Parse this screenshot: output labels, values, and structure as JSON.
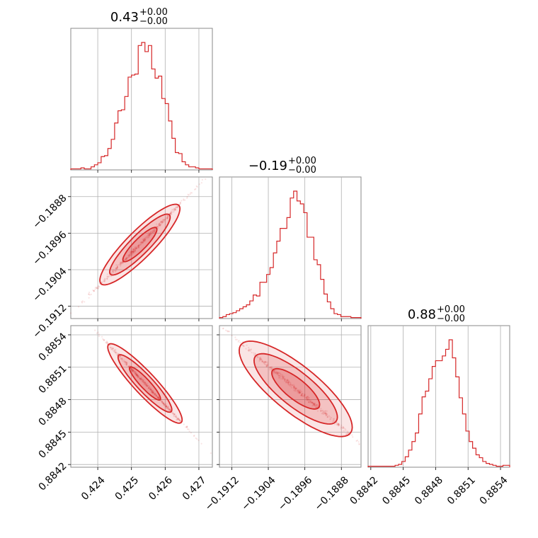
{
  "chart_data": {
    "type": "corner",
    "color": "#d62728",
    "grid": true,
    "titles": [
      {
        "value": "0.43",
        "plus": "+0.00",
        "minus": "−0.00"
      },
      {
        "value": "−0.19",
        "plus": "+0.00",
        "minus": "−0.00"
      },
      {
        "value": "0.88",
        "plus": "+0.00",
        "minus": "−0.00"
      }
    ],
    "params": [
      {
        "range": [
          0.4232,
          0.4274
        ],
        "ticks": [
          0.424,
          0.425,
          0.426,
          0.427
        ],
        "tick_labels": [
          "0.424",
          "0.425",
          "0.426",
          "0.427"
        ]
      },
      {
        "range": [
          -0.19147,
          -0.18837
        ],
        "ticks": [
          -0.1912,
          -0.1904,
          -0.1896,
          -0.1888
        ],
        "tick_labels": [
          "−0.1912",
          "−0.1904",
          "−0.1896",
          "−0.1888"
        ]
      },
      {
        "range": [
          0.884175,
          0.885485
        ],
        "ticks": [
          0.8842,
          0.8845,
          0.8848,
          0.8851,
          0.8854
        ],
        "tick_labels": [
          "0.8842",
          "0.8845",
          "0.8848",
          "0.8851",
          "0.8854"
        ]
      }
    ],
    "histograms": [
      {
        "bins": [
          0.4232,
          0.4274
        ],
        "counts": [
          1,
          1,
          1,
          2,
          1,
          1,
          3,
          5,
          7,
          13,
          14,
          21,
          30,
          46,
          58,
          59,
          72,
          91,
          93,
          94,
          122,
          125,
          116,
          122,
          99,
          90,
          92,
          70,
          65,
          48,
          31,
          17,
          16,
          8,
          5,
          3,
          3,
          2,
          1,
          1,
          1,
          1
        ]
      },
      {
        "bins": [
          -0.19147,
          -0.18837
        ],
        "counts": [
          1,
          2,
          4,
          5,
          6,
          8,
          10,
          12,
          14,
          18,
          24,
          23,
          37,
          37,
          45,
          52,
          67,
          79,
          92,
          92,
          103,
          123,
          130,
          120,
          117,
          108,
          83,
          83,
          60,
          55,
          40,
          25,
          17,
          10,
          5,
          4,
          2,
          2,
          2,
          1,
          1,
          1
        ]
      },
      {
        "bins": [
          0.884175,
          0.885485
        ],
        "counts": [
          1,
          1,
          1,
          1,
          1,
          1,
          1,
          1,
          2,
          3,
          6,
          11,
          18,
          27,
          36,
          56,
          74,
          80,
          93,
          106,
          112,
          112,
          117,
          124,
          134,
          115,
          95,
          73,
          56,
          38,
          27,
          20,
          13,
          10,
          6,
          4,
          3,
          2,
          1,
          1,
          2,
          2
        ]
      }
    ]
  }
}
